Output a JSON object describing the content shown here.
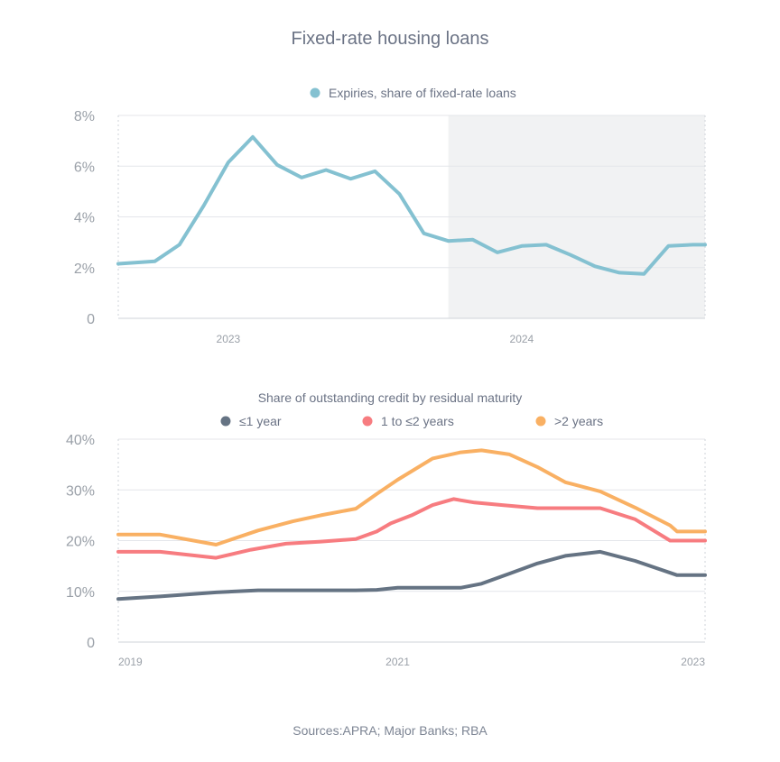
{
  "page": {
    "title": "Fixed-rate housing loans",
    "source": "Sources:APRA; Major Banks; RBA"
  },
  "chart_data": [
    {
      "type": "line",
      "title": "",
      "legend_position": "top-center",
      "grid": true,
      "shaded_region_x_start": 13.5,
      "ylim": [
        0,
        8
      ],
      "yticks": [
        0,
        2,
        4,
        6,
        8
      ],
      "ytick_labels": [
        "0",
        "2%",
        "4%",
        "6%",
        "8%"
      ],
      "xlim": [
        0,
        24
      ],
      "xticks": [
        4.5,
        16.5
      ],
      "xtick_labels": [
        "2023",
        "2024"
      ],
      "series": [
        {
          "name": "Expiries, share of fixed-rate loans",
          "color": "#84c1d1",
          "x": [
            0,
            1.5,
            2.5,
            3.5,
            4.5,
            5.5,
            6.5,
            7.5,
            8.5,
            9.5,
            10.5,
            11.5,
            12.5,
            13.5,
            14.5,
            15.5,
            16.5,
            17.5,
            18.5,
            19.5,
            20.5,
            21.5,
            22.5,
            23.5,
            24
          ],
          "values": [
            2.15,
            2.25,
            2.9,
            4.45,
            6.15,
            7.15,
            6.05,
            5.55,
            5.85,
            5.5,
            5.8,
            4.9,
            3.35,
            3.05,
            3.1,
            2.6,
            2.85,
            2.9,
            2.5,
            2.05,
            1.8,
            1.75,
            2.85,
            2.9,
            2.9
          ]
        }
      ]
    },
    {
      "type": "line",
      "title": "Share of outstanding credit by residual maturity",
      "legend_position": "top-center",
      "grid": true,
      "ylim": [
        0,
        40
      ],
      "yticks": [
        0,
        10,
        20,
        30,
        40
      ],
      "ytick_labels": [
        "0",
        "10%",
        "20%",
        "30%",
        "40%"
      ],
      "xlim": [
        2019,
        2023.2
      ],
      "xticks": [
        2019,
        2021,
        2023
      ],
      "xtick_labels": [
        "2019",
        "2021",
        "2023"
      ],
      "series": [
        {
          "name": "≤1 year",
          "color": "#657383",
          "x": [
            2019.0,
            2019.3,
            2019.7,
            2020.0,
            2020.3,
            2020.7,
            2020.85,
            2021.0,
            2021.25,
            2021.45,
            2021.6,
            2021.8,
            2022.0,
            2022.2,
            2022.45,
            2022.7,
            2023.0,
            2023.2
          ],
          "values": [
            8.5,
            9.0,
            9.8,
            10.2,
            10.2,
            10.2,
            10.3,
            10.7,
            10.7,
            10.7,
            11.5,
            13.5,
            15.5,
            17.0,
            17.8,
            16.0,
            13.2,
            13.2
          ]
        },
        {
          "name": "1 to ≤2 years",
          "color": "#f77c80",
          "x": [
            2019.0,
            2019.3,
            2019.7,
            2019.95,
            2020.2,
            2020.45,
            2020.7,
            2020.85,
            2020.95,
            2021.1,
            2021.25,
            2021.4,
            2021.55,
            2021.75,
            2022.0,
            2022.2,
            2022.45,
            2022.7,
            2022.95,
            2023.0,
            2023.2
          ],
          "values": [
            17.8,
            17.8,
            16.6,
            18.2,
            19.4,
            19.8,
            20.3,
            21.8,
            23.4,
            25.0,
            27.0,
            28.2,
            27.5,
            27.0,
            26.4,
            26.4,
            26.4,
            24.2,
            20.0,
            20.0,
            20.0
          ]
        },
        {
          "name": ">2 years",
          "color": "#f9b063",
          "x": [
            2019.0,
            2019.3,
            2019.7,
            2020.0,
            2020.25,
            2020.45,
            2020.7,
            2020.85,
            2021.0,
            2021.25,
            2021.45,
            2021.6,
            2021.8,
            2022.0,
            2022.2,
            2022.45,
            2022.7,
            2022.95,
            2023.0,
            2023.2
          ],
          "values": [
            21.2,
            21.2,
            19.2,
            22.0,
            23.8,
            25.0,
            26.3,
            29.2,
            32.0,
            36.2,
            37.4,
            37.8,
            37.0,
            34.5,
            31.5,
            29.7,
            26.5,
            23.0,
            21.8,
            21.8
          ]
        }
      ]
    }
  ]
}
